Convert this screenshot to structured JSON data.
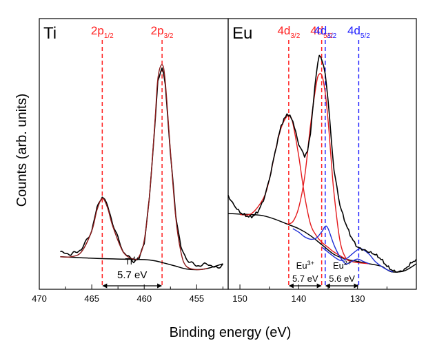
{
  "figure": {
    "xlabel": "Binding energy (eV)",
    "ylabel": "Counts (arb. units)"
  },
  "colors": {
    "data": "#000000",
    "eu3_fit": "#e41a1c",
    "eu2_fit": "#1f2fd6",
    "envelope": "#8b1a1a",
    "marker_red": "#ff2020",
    "marker_blue": "#2020ff"
  },
  "chart_data": [
    {
      "type": "line",
      "panel_label": "Ti",
      "xlabel": "Binding energy (eV)",
      "ylabel": "Counts (arb. units)",
      "xlim": [
        470,
        452
      ],
      "x_reversed": true,
      "ylim": [
        0,
        1
      ],
      "grid": false,
      "x_ticks": [
        "470",
        "465",
        "460",
        "455"
      ],
      "peak_labels": [
        {
          "main": "2p",
          "sub": "1/2",
          "x": 464.0,
          "color": "#ff2020"
        },
        {
          "main": "2p",
          "sub": "3/2",
          "x": 458.3,
          "color": "#ff2020"
        }
      ],
      "annotations": [
        {
          "main": "Ti",
          "sup": "4+"
        },
        {
          "text": "5.7 eV",
          "x_from": 464.0,
          "x_to": 458.3
        }
      ],
      "series": [
        {
          "role": "measured",
          "x": [
            468,
            467,
            466,
            465,
            464.5,
            464,
            463.5,
            463,
            462,
            461,
            460.5,
            460,
            459.5,
            459,
            458.7,
            458.3,
            458,
            457.5,
            457,
            456.5,
            456,
            455,
            454,
            453,
            452.5
          ],
          "y": [
            0.1,
            0.09,
            0.11,
            0.19,
            0.29,
            0.34,
            0.3,
            0.22,
            0.1,
            0.06,
            0.07,
            0.14,
            0.33,
            0.63,
            0.83,
            0.89,
            0.82,
            0.52,
            0.26,
            0.12,
            0.07,
            0.04,
            0.05,
            0.03,
            0.05
          ]
        },
        {
          "role": "background",
          "x": [
            468,
            466,
            464,
            462,
            460,
            459,
            458,
            457,
            456,
            455,
            454,
            452.5
          ],
          "y": [
            0.08,
            0.076,
            0.072,
            0.07,
            0.068,
            0.063,
            0.052,
            0.04,
            0.028,
            0.025,
            0.03,
            0.05
          ]
        },
        {
          "role": "fit_envelope",
          "x": [
            468,
            467,
            466,
            465,
            464.5,
            464,
            463.5,
            463,
            462,
            461,
            460.5,
            460,
            459.5,
            459,
            458.7,
            458.3,
            458,
            457.5,
            457,
            456.5,
            456,
            455,
            454
          ],
          "y": [
            0.08,
            0.08,
            0.1,
            0.19,
            0.28,
            0.33,
            0.29,
            0.21,
            0.1,
            0.07,
            0.08,
            0.15,
            0.34,
            0.64,
            0.84,
            0.9,
            0.83,
            0.53,
            0.25,
            0.1,
            0.04,
            0.025,
            0.03
          ]
        }
      ]
    },
    {
      "type": "line",
      "panel_label": "Eu",
      "xlabel": "Binding energy (eV)",
      "ylabel": "Counts (arb. units)",
      "xlim": [
        152,
        120
      ],
      "x_reversed": true,
      "ylim": [
        0,
        1
      ],
      "grid": false,
      "x_ticks": [
        "150",
        "140",
        "130"
      ],
      "peak_labels": [
        {
          "main": "4d",
          "sub": "3/2",
          "x": 141.7,
          "color": "#ff2020"
        },
        {
          "main": "4d",
          "sub": "5/2",
          "x": 136.1,
          "color": "#ff2020"
        },
        {
          "main": "4d",
          "sub": "3/2",
          "x": 135.5,
          "color": "#2020ff"
        },
        {
          "main": "4d",
          "sub": "5/2",
          "x": 129.8,
          "color": "#2020ff"
        }
      ],
      "annotations": [
        {
          "main": "Eu",
          "sup": "3+"
        },
        {
          "text": "5.7 eV",
          "x_from": 141.7,
          "x_to": 136.1
        },
        {
          "main": "Eu",
          "sup": "2+"
        },
        {
          "text": "5.6 eV",
          "x_from": 135.5,
          "x_to": 129.8
        }
      ],
      "series": [
        {
          "role": "measured",
          "x": [
            152,
            151,
            150,
            149,
            148,
            147,
            146,
            145,
            144,
            143,
            142,
            141.5,
            141,
            140,
            139,
            138.5,
            138,
            137.5,
            137,
            136.5,
            136,
            135.5,
            135,
            134.5,
            134,
            133,
            132,
            131,
            130,
            129,
            128,
            127,
            126,
            125,
            124,
            123,
            122,
            121,
            120
          ],
          "y": [
            0.34,
            0.3,
            0.27,
            0.255,
            0.25,
            0.27,
            0.32,
            0.41,
            0.53,
            0.64,
            0.69,
            0.68,
            0.66,
            0.56,
            0.51,
            0.53,
            0.61,
            0.74,
            0.87,
            0.94,
            0.92,
            0.86,
            0.75,
            0.59,
            0.45,
            0.3,
            0.22,
            0.16,
            0.12,
            0.11,
            0.1,
            0.09,
            0.07,
            0.04,
            0.02,
            0.015,
            0.025,
            0.05,
            0.07
          ]
        },
        {
          "role": "background",
          "x": [
            152,
            150,
            148,
            146,
            144,
            142,
            140,
            138,
            136,
            134,
            132,
            130,
            128,
            126,
            125,
            124,
            122,
            120
          ],
          "y": [
            0.265,
            0.262,
            0.26,
            0.255,
            0.24,
            0.22,
            0.2,
            0.17,
            0.13,
            0.09,
            0.07,
            0.06,
            0.05,
            0.04,
            0.025,
            0.015,
            0.02,
            0.05
          ]
        },
        {
          "role": "eu3_3/2",
          "x": [
            150,
            148,
            146,
            145,
            144,
            143,
            142,
            141.5,
            141,
            140,
            139,
            138,
            137,
            136,
            135,
            134,
            132
          ],
          "y": [
            0.26,
            0.265,
            0.33,
            0.41,
            0.53,
            0.63,
            0.68,
            0.68,
            0.65,
            0.51,
            0.34,
            0.22,
            0.17,
            0.14,
            0.12,
            0.1,
            0.07
          ]
        },
        {
          "role": "eu3_5/2",
          "x": [
            142,
            141,
            140,
            139,
            138,
            137,
            136.5,
            136,
            135.5,
            135,
            134.5,
            134,
            133,
            132,
            131,
            130,
            128
          ],
          "y": [
            0.22,
            0.23,
            0.29,
            0.42,
            0.64,
            0.82,
            0.86,
            0.85,
            0.78,
            0.66,
            0.5,
            0.35,
            0.15,
            0.075,
            0.06,
            0.055,
            0.05
          ]
        },
        {
          "role": "eu2_3/2",
          "x": [
            141,
            140,
            139,
            138,
            137,
            136,
            135.5,
            135,
            134,
            133,
            132,
            131,
            130,
            129,
            128
          ],
          "y": [
            0.2,
            0.185,
            0.165,
            0.155,
            0.16,
            0.19,
            0.21,
            0.2,
            0.13,
            0.08,
            0.05,
            0.06,
            0.07,
            0.06,
            0.05
          ]
        },
        {
          "role": "eu2_5/2",
          "x": [
            136,
            134,
            133,
            132,
            131,
            130,
            129.5,
            129,
            128,
            127,
            126,
            125,
            124
          ],
          "y": [
            0.12,
            0.08,
            0.065,
            0.07,
            0.09,
            0.11,
            0.115,
            0.11,
            0.09,
            0.06,
            0.04,
            0.025,
            0.015
          ]
        }
      ]
    }
  ]
}
